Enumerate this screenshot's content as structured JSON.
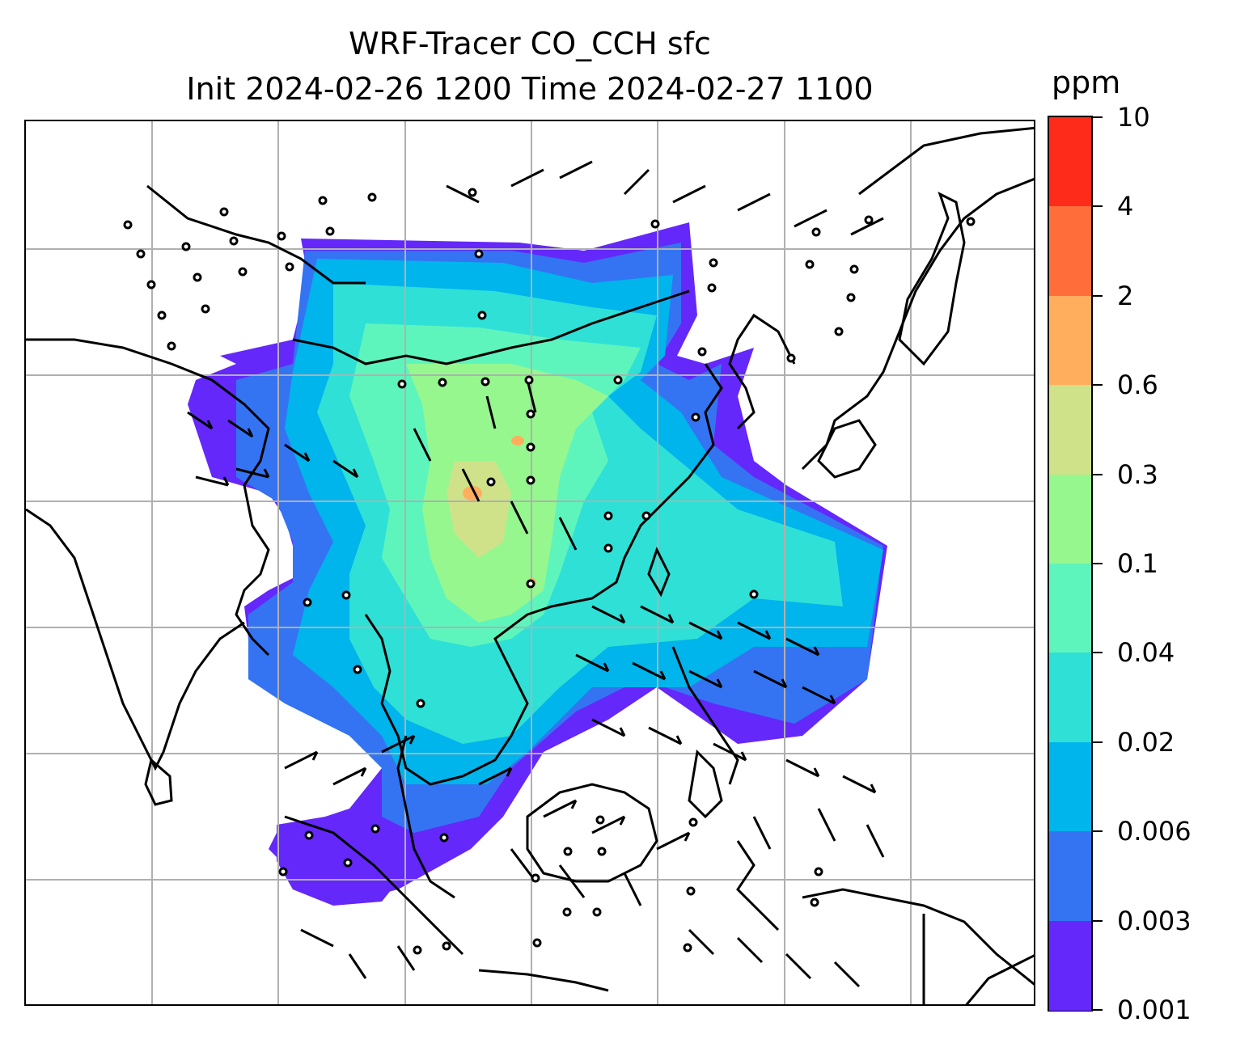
{
  "title": {
    "line1": "WRF-Tracer CO_CCH sfc",
    "line2": "Init 2024-02-26 1200 Time 2024-02-27 1100"
  },
  "colorbar": {
    "unit": "ppm",
    "levels": [
      "10",
      "4",
      "2",
      "0.6",
      "0.3",
      "0.1",
      "0.04",
      "0.02",
      "0.006",
      "0.003",
      "0.001"
    ],
    "colors": [
      "#ff2b1a",
      "#ff6e3a",
      "#ffae5e",
      "#cfe28a",
      "#96f78f",
      "#5ef5bd",
      "#2fe0d6",
      "#00b4ec",
      "#3474f3",
      "#6428fa"
    ]
  },
  "map": {
    "gridlines": "on",
    "wind_barbs": "shown",
    "coastlines": "shown",
    "field_colors": {
      "lowest": "#6428fa",
      "low": "#3474f3",
      "mid": "#00b4ec",
      "cyan": "#2fe0d6",
      "green": "#5ef5bd",
      "lightgreen": "#96f78f",
      "yellowgreen": "#cfe28a",
      "orange": "#ffae5e"
    }
  }
}
